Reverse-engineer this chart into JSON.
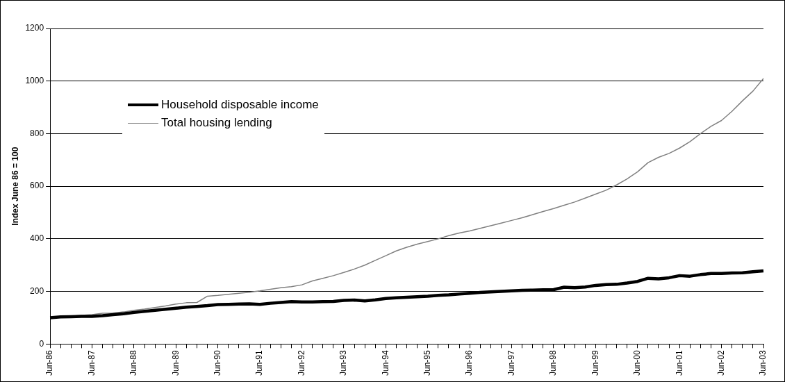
{
  "chart_data": {
    "type": "line",
    "ylabel": "Index June 86 = 100",
    "categories": [
      "Jun-86",
      null,
      null,
      null,
      "Jun-87",
      null,
      null,
      null,
      "Jun-88",
      null,
      null,
      null,
      "Jun-89",
      null,
      null,
      null,
      "Jun-90",
      null,
      null,
      null,
      "Jun-91",
      null,
      null,
      null,
      "Jun-92",
      null,
      null,
      null,
      "Jun-93",
      null,
      null,
      null,
      "Jun-94",
      null,
      null,
      null,
      "Jun-95",
      null,
      null,
      null,
      "Jun-96",
      null,
      null,
      null,
      "Jun-97",
      null,
      null,
      null,
      "Jun-98",
      null,
      null,
      null,
      "Jun-99",
      null,
      null,
      null,
      "Jun-00",
      null,
      null,
      null,
      "Jun-01",
      null,
      null,
      null,
      "Jun-02",
      null,
      null,
      null,
      "Jun-03"
    ],
    "series": [
      {
        "name": "Household disposable income",
        "color": "#000000",
        "values": [
          100,
          103,
          104,
          105,
          105,
          108,
          112,
          115,
          120,
          124,
          128,
          132,
          136,
          140,
          143,
          146,
          150,
          151,
          152,
          153,
          151,
          155,
          158,
          161,
          160,
          160,
          161,
          162,
          166,
          167,
          164,
          168,
          173,
          176,
          178,
          180,
          182,
          185,
          187,
          190,
          193,
          196,
          198,
          200,
          202,
          204,
          205,
          206,
          207,
          216,
          214,
          217,
          223,
          226,
          227,
          232,
          238,
          250,
          248,
          252,
          260,
          258,
          264,
          268,
          268,
          270,
          271,
          275,
          278
        ]
      },
      {
        "name": "Total housing lending",
        "color": "#808080",
        "values": [
          100,
          103,
          106,
          109,
          112,
          117,
          118,
          122,
          128,
          133,
          139,
          145,
          152,
          157,
          158,
          182,
          185,
          189,
          193,
          197,
          202,
          208,
          214,
          218,
          225,
          240,
          250,
          260,
          272,
          285,
          300,
          318,
          336,
          354,
          368,
          380,
          390,
          400,
          412,
          422,
          430,
          440,
          450,
          460,
          470,
          480,
          492,
          504,
          515,
          528,
          540,
          555,
          570,
          585,
          605,
          628,
          655,
          690,
          710,
          725,
          745,
          770,
          800,
          828,
          850,
          885,
          925,
          962,
          1010
        ]
      }
    ],
    "ylim": [
      0,
      1200
    ],
    "yticks": [
      0,
      200,
      400,
      600,
      800,
      1000,
      1200
    ],
    "grid": "y",
    "legend": "top left",
    "line_style": "solid",
    "marker": "none"
  }
}
